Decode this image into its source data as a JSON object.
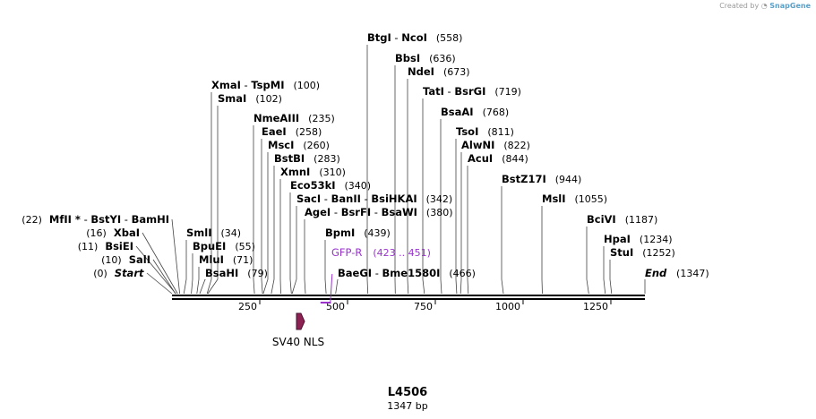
{
  "credit": {
    "created_by": "Created by",
    "brand": "SnapGene"
  },
  "plasmid": {
    "name": "L4506",
    "length_label": "1347 bp"
  },
  "scale": {
    "total_bp": 1347,
    "ticks": [
      "250",
      "500",
      "750",
      "1000",
      "1250"
    ]
  },
  "sites": [
    {
      "names": [
        "BtgI",
        "NcoI"
      ],
      "position": "(558)",
      "bp": 558
    },
    {
      "names": [
        "BbsI"
      ],
      "position": "(636)",
      "bp": 636
    },
    {
      "names": [
        "NdeI"
      ],
      "position": "(673)",
      "bp": 673
    },
    {
      "names": [
        "TatI",
        "BsrGI"
      ],
      "position": "(719)",
      "bp": 719
    },
    {
      "names": [
        "BsaAI"
      ],
      "position": "(768)",
      "bp": 768
    },
    {
      "names": [
        "TsoI"
      ],
      "position": "(811)",
      "bp": 811
    },
    {
      "names": [
        "AlwNI"
      ],
      "position": "(822)",
      "bp": 822
    },
    {
      "names": [
        "AcuI"
      ],
      "position": "(844)",
      "bp": 844
    },
    {
      "names": [
        "BstZ17I"
      ],
      "position": "(944)",
      "bp": 944
    },
    {
      "names": [
        "MslI"
      ],
      "position": "(1055)",
      "bp": 1055
    },
    {
      "names": [
        "BciVI"
      ],
      "position": "(1187)",
      "bp": 1187
    },
    {
      "names": [
        "HpaI"
      ],
      "position": "(1234)",
      "bp": 1234
    },
    {
      "names": [
        "StuI"
      ],
      "position": "(1252)",
      "bp": 1252
    },
    {
      "names": [
        "End"
      ],
      "position": "(1347)",
      "bp": 1347
    },
    {
      "names": [
        "XmaI",
        "TspMI"
      ],
      "position": "(100)",
      "bp": 100
    },
    {
      "names": [
        "SmaI"
      ],
      "position": "(102)",
      "bp": 102
    },
    {
      "names": [
        "NmeAIII"
      ],
      "position": "(235)",
      "bp": 235
    },
    {
      "names": [
        "EaeI"
      ],
      "position": "(258)",
      "bp": 258
    },
    {
      "names": [
        "MscI"
      ],
      "position": "(260)",
      "bp": 260
    },
    {
      "names": [
        "BstBI"
      ],
      "position": "(283)",
      "bp": 283
    },
    {
      "names": [
        "XmnI"
      ],
      "position": "(310)",
      "bp": 310
    },
    {
      "names": [
        "Eco53kI"
      ],
      "position": "(340)",
      "bp": 340
    },
    {
      "names": [
        "SacI",
        "BanII",
        "BsiHKAI"
      ],
      "position": "(342)",
      "bp": 342
    },
    {
      "names": [
        "AgeI",
        "BsrFI",
        "BsaWI"
      ],
      "position": "(380)",
      "bp": 380
    },
    {
      "names": [
        "BpmI"
      ],
      "position": "(439)",
      "bp": 439
    },
    {
      "names": [
        "BaeGI",
        "Bme1580I"
      ],
      "position": "(466)",
      "bp": 466
    },
    {
      "names": [
        "MfII *",
        "BstYI",
        "BamHI"
      ],
      "position": "(22)",
      "bp": 22
    },
    {
      "names": [
        "XbaI"
      ],
      "position": "(16)",
      "bp": 16
    },
    {
      "names": [
        "BsiEI"
      ],
      "position": "(11)",
      "bp": 11
    },
    {
      "names": [
        "SalI"
      ],
      "position": "(10)",
      "bp": 10
    },
    {
      "names": [
        "Start"
      ],
      "position": "(0)",
      "bp": 0
    },
    {
      "names": [
        "SmlI"
      ],
      "position": "(34)",
      "bp": 34
    },
    {
      "names": [
        "BpuEI"
      ],
      "position": "(55)",
      "bp": 55
    },
    {
      "names": [
        "MluI"
      ],
      "position": "(71)",
      "bp": 71
    },
    {
      "names": [
        "BsaHI"
      ],
      "position": "(79)",
      "bp": 79
    }
  ],
  "primer": {
    "name": "GFP-R",
    "range": "(423 .. 451)",
    "color": "#9933cc"
  },
  "feature": {
    "name": "SV40 NLS",
    "color": "#8b2252"
  }
}
